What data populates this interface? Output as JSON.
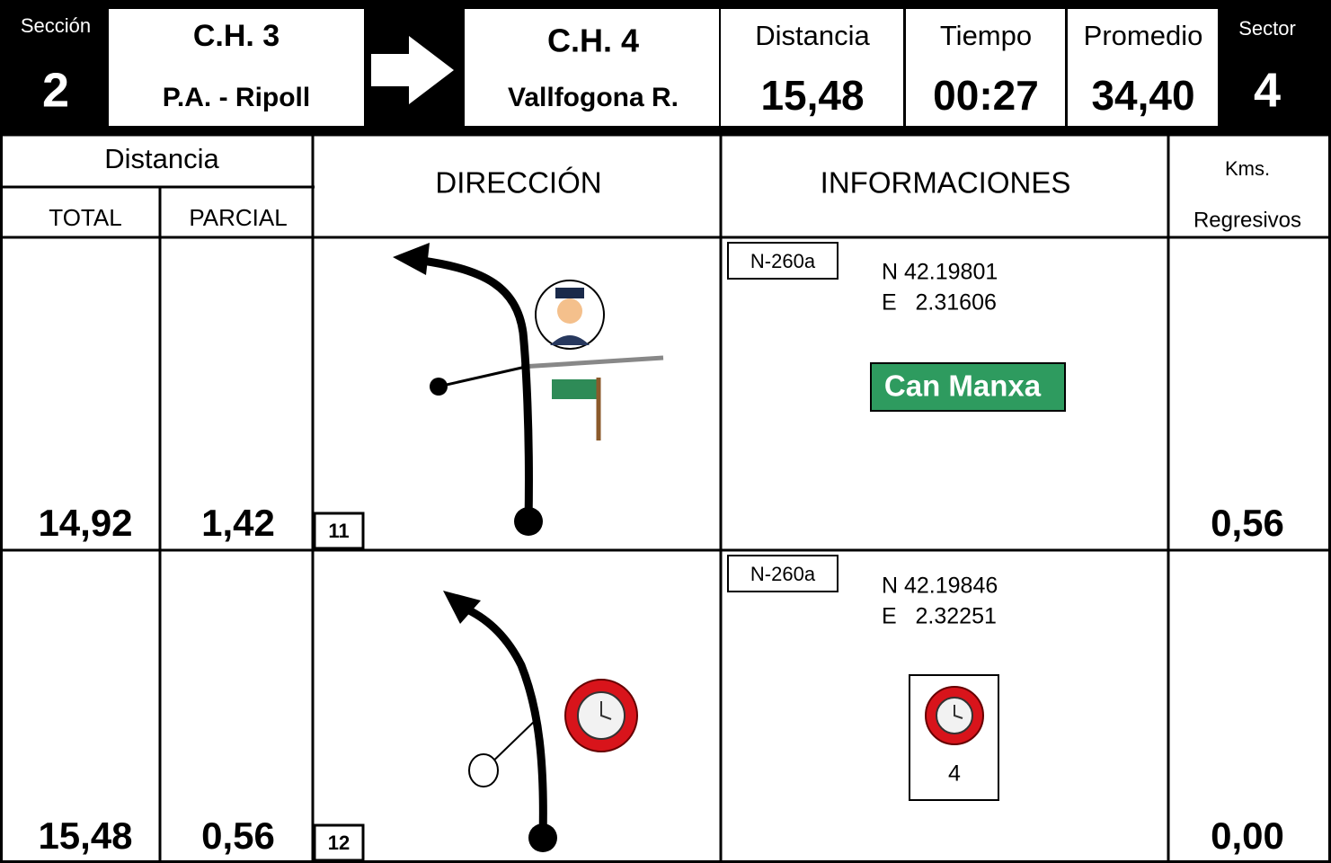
{
  "header": {
    "section_label": "Sección",
    "section": "2",
    "from_title": "C.H. 3",
    "from_name": "P.A. - Ripoll",
    "to_title": "C.H. 4",
    "to_name": "Vallfogona R.",
    "distance_label": "Distancia",
    "distance": "15,48",
    "time_label": "Tiempo",
    "time": "00:27",
    "average_label": "Promedio",
    "average": "34,40",
    "sector_label": "Sector",
    "sector": "4"
  },
  "columns": {
    "distance": "Distancia",
    "total": "TOTAL",
    "partial": "PARCIAL",
    "direction": "DIRECCIÓN",
    "info": "INFORMACIONES",
    "remaining": [
      "Kms.",
      "Regresivos"
    ]
  },
  "rows": [
    {
      "total": "14,92",
      "partial": "1,42",
      "number": "11",
      "road": "N-260a",
      "lat": "N 42.19801",
      "lon": "E   2.31606",
      "sign": "Can Manxa",
      "remaining": "0,56"
    },
    {
      "total": "15,48",
      "partial": "0,56",
      "number": "12",
      "road": "N-260a",
      "lat": "N 42.19846",
      "lon": "E   2.32251",
      "sign_count": "4",
      "remaining": "0,00"
    }
  ]
}
